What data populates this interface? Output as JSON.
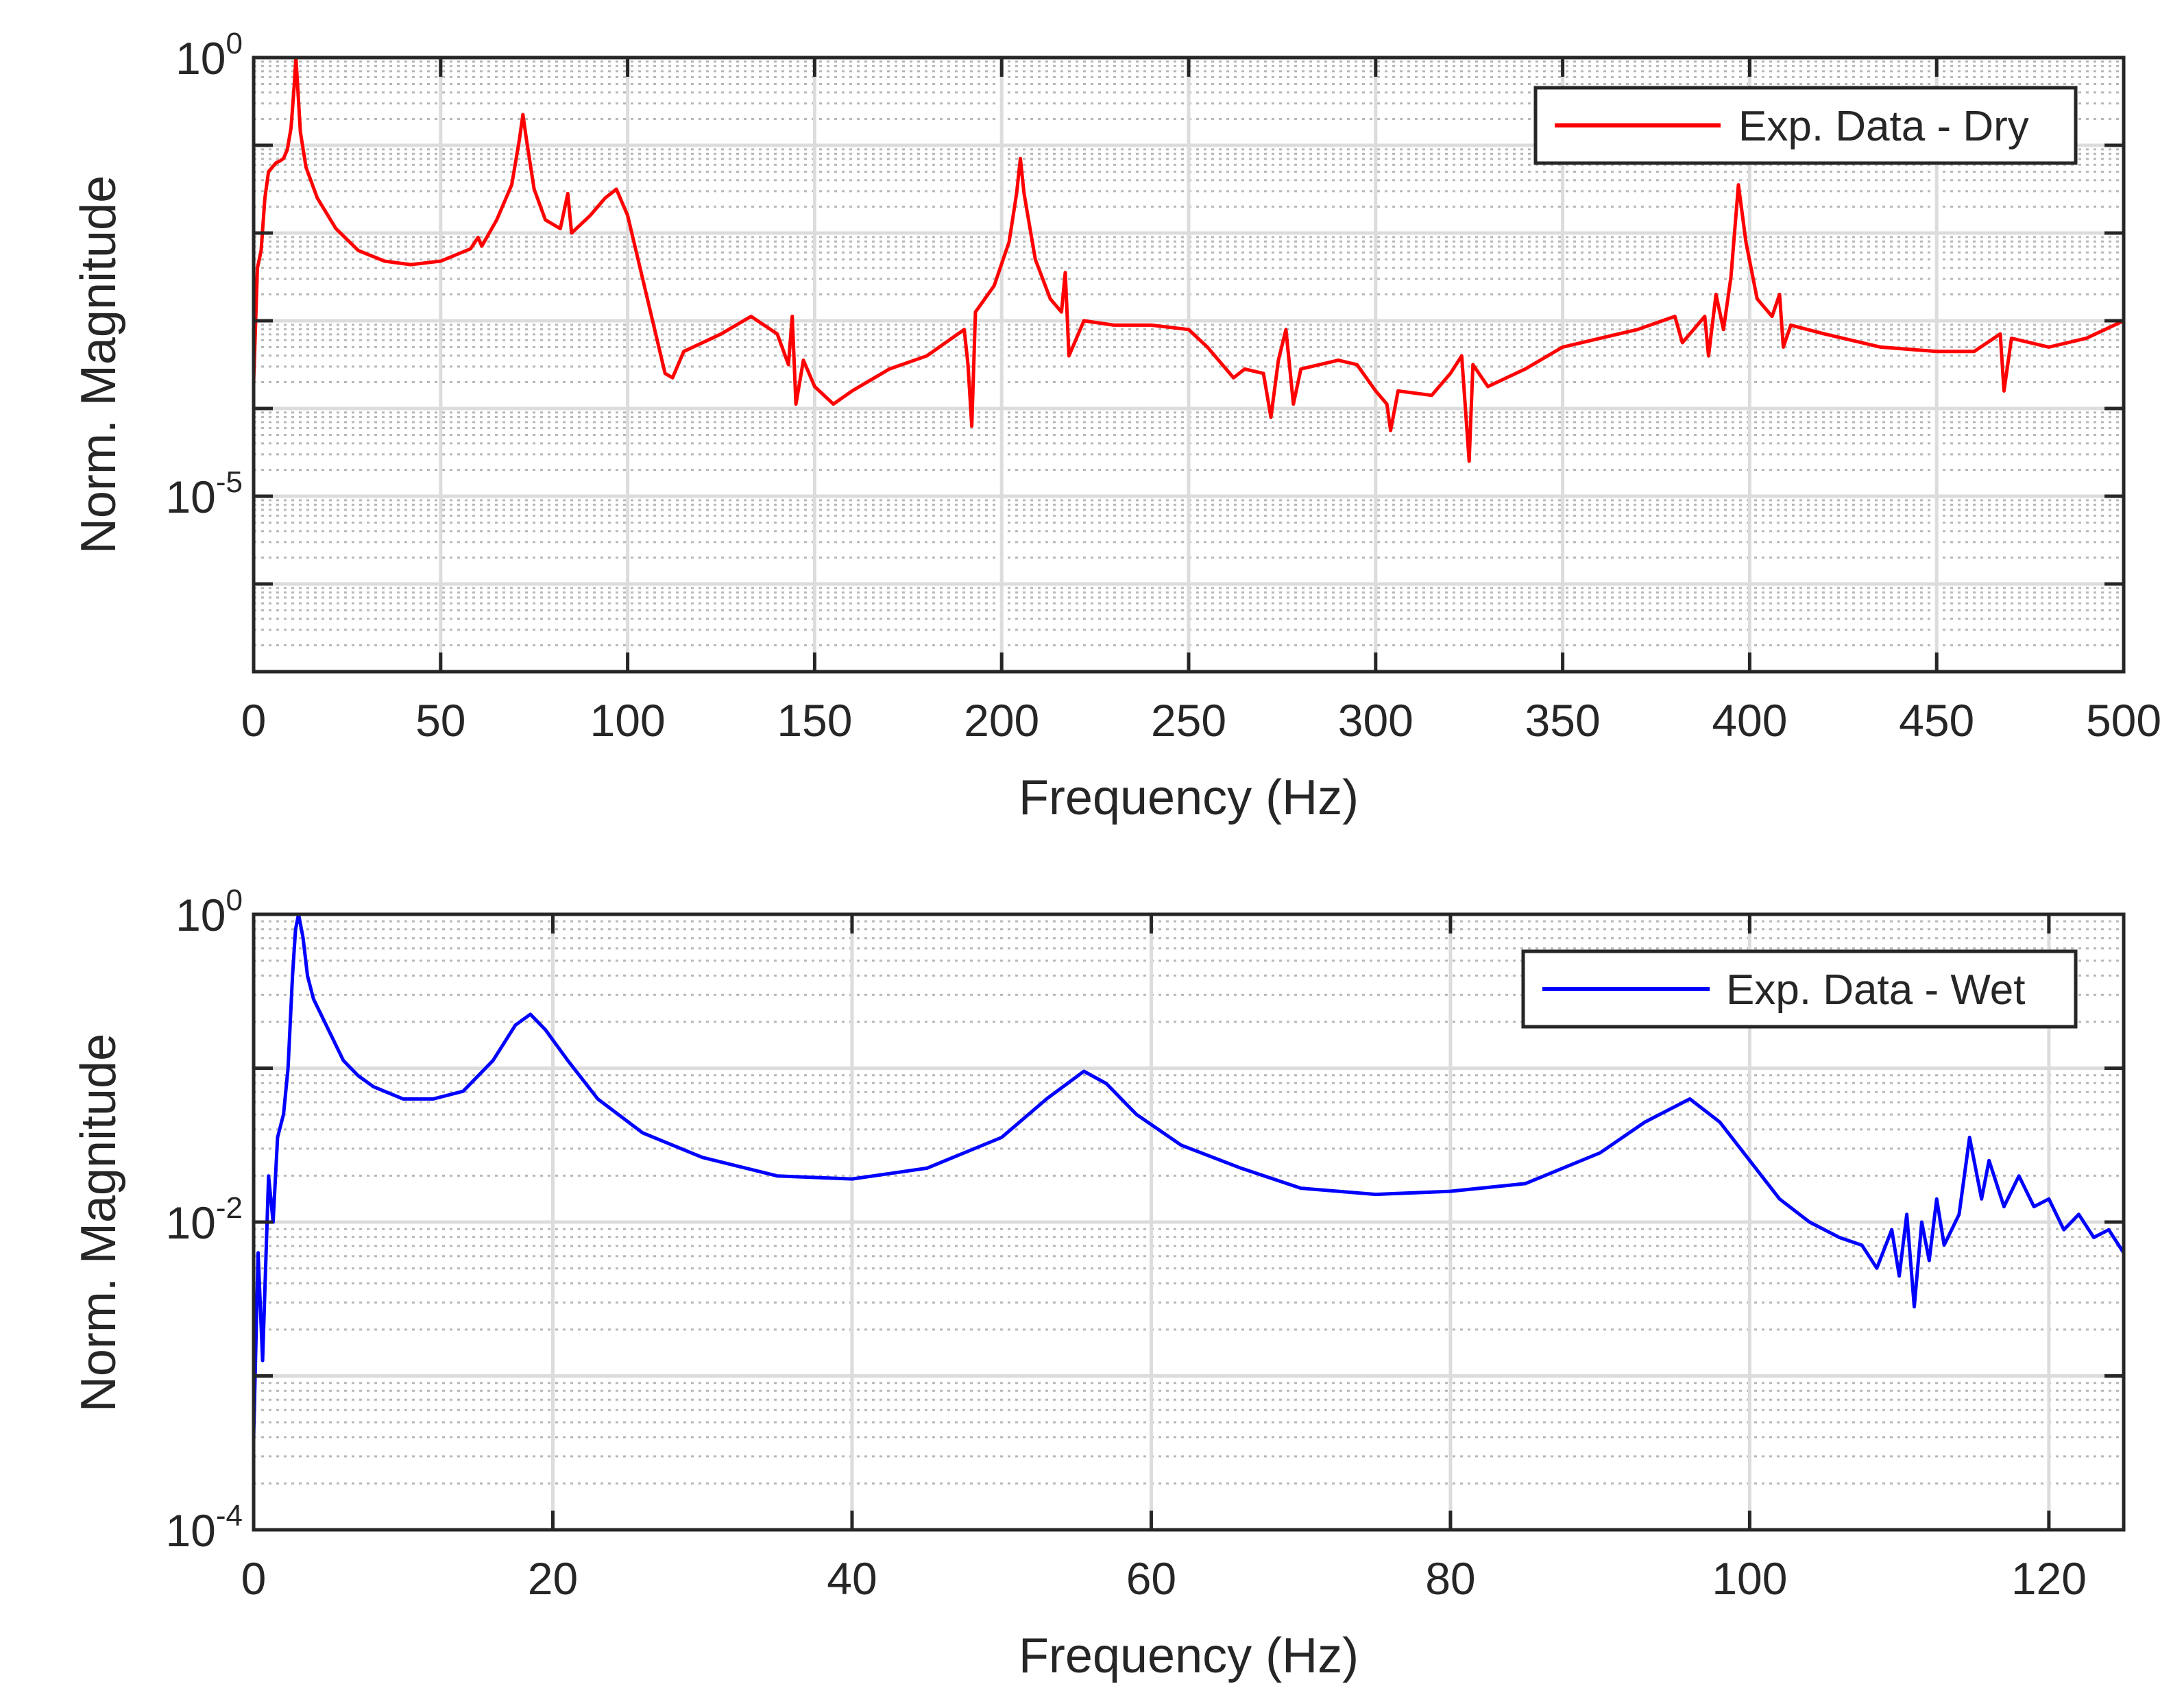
{
  "chart_data": [
    {
      "type": "line",
      "id": "dry",
      "xlabel": "Frequency (Hz)",
      "ylabel": "Norm. Magnitude",
      "x_scale": "linear",
      "y_scale": "log",
      "xlim": [
        0,
        500
      ],
      "ylim_log10": [
        -7,
        0
      ],
      "xticks": [
        0,
        50,
        100,
        150,
        200,
        250,
        300,
        350,
        400,
        450,
        500
      ],
      "xtick_labels": [
        "0",
        "50",
        "100",
        "150",
        "200",
        "250",
        "300",
        "350",
        "400",
        "450",
        "500"
      ],
      "yticks": [
        {
          "exp": 0,
          "base": "10",
          "sup": "0"
        },
        {
          "exp": -5,
          "base": "10",
          "sup": "-5"
        }
      ],
      "grid": "major + minor (dotted)",
      "legend": "top-right",
      "series": [
        {
          "name": "Exp. Data - Dry",
          "color": "#ff0000",
          "points_log10": [
            [
              0.0,
              -3.7
            ],
            [
              1.0,
              -2.4
            ],
            [
              2.0,
              -2.2
            ],
            [
              3.0,
              -1.6
            ],
            [
              4.0,
              -1.3
            ],
            [
              5.0,
              -1.25
            ],
            [
              6.0,
              -1.2
            ],
            [
              7.0,
              -1.18
            ],
            [
              8.0,
              -1.15
            ],
            [
              9.0,
              -1.05
            ],
            [
              10.0,
              -0.8
            ],
            [
              10.8,
              -0.35
            ],
            [
              11.3,
              0.0
            ],
            [
              11.8,
              -0.35
            ],
            [
              12.5,
              -0.85
            ],
            [
              14.0,
              -1.25
            ],
            [
              17.0,
              -1.6
            ],
            [
              22.0,
              -1.95
            ],
            [
              28.0,
              -2.2
            ],
            [
              35.0,
              -2.32
            ],
            [
              42.0,
              -2.36
            ],
            [
              50.0,
              -2.32
            ],
            [
              58.0,
              -2.18
            ],
            [
              60.0,
              -2.05
            ],
            [
              61.0,
              -2.15
            ],
            [
              65.0,
              -1.85
            ],
            [
              69.0,
              -1.45
            ],
            [
              71.0,
              -0.95
            ],
            [
              72.0,
              -0.65
            ],
            [
              73.0,
              -0.95
            ],
            [
              75.0,
              -1.5
            ],
            [
              78.0,
              -1.85
            ],
            [
              82.0,
              -1.95
            ],
            [
              84.0,
              -1.55
            ],
            [
              85.0,
              -2.0
            ],
            [
              90.0,
              -1.8
            ],
            [
              94.0,
              -1.6
            ],
            [
              97.0,
              -1.5
            ],
            [
              100.0,
              -1.8
            ],
            [
              105.0,
              -2.7
            ],
            [
              110.0,
              -3.6
            ],
            [
              112.0,
              -3.65
            ],
            [
              115.0,
              -3.35
            ],
            [
              125.0,
              -3.15
            ],
            [
              133.0,
              -2.95
            ],
            [
              140.0,
              -3.15
            ],
            [
              143.0,
              -3.5
            ],
            [
              144.0,
              -2.95
            ],
            [
              145.0,
              -3.95
            ],
            [
              147.0,
              -3.45
            ],
            [
              150.0,
              -3.75
            ],
            [
              155.0,
              -3.95
            ],
            [
              160.0,
              -3.8
            ],
            [
              170.0,
              -3.55
            ],
            [
              180.0,
              -3.4
            ],
            [
              190.0,
              -3.1
            ],
            [
              191.0,
              -3.5
            ],
            [
              192.0,
              -4.2
            ],
            [
              193.0,
              -2.9
            ],
            [
              198.0,
              -2.6
            ],
            [
              202.0,
              -2.1
            ],
            [
              204.0,
              -1.55
            ],
            [
              205.0,
              -1.15
            ],
            [
              206.0,
              -1.55
            ],
            [
              209.0,
              -2.3
            ],
            [
              213.0,
              -2.75
            ],
            [
              216.0,
              -2.9
            ],
            [
              217.0,
              -2.45
            ],
            [
              218.0,
              -3.4
            ],
            [
              222.0,
              -3.0
            ],
            [
              230.0,
              -3.05
            ],
            [
              240.0,
              -3.05
            ],
            [
              250.0,
              -3.1
            ],
            [
              255.0,
              -3.3
            ],
            [
              262.0,
              -3.65
            ],
            [
              265.0,
              -3.55
            ],
            [
              270.0,
              -3.6
            ],
            [
              272.0,
              -4.1
            ],
            [
              274.0,
              -3.45
            ],
            [
              276.0,
              -3.1
            ],
            [
              278.0,
              -3.95
            ],
            [
              280.0,
              -3.55
            ],
            [
              290.0,
              -3.45
            ],
            [
              295.0,
              -3.5
            ],
            [
              300.0,
              -3.8
            ],
            [
              303.0,
              -3.95
            ],
            [
              304.0,
              -4.25
            ],
            [
              306.0,
              -3.8
            ],
            [
              315.0,
              -3.85
            ],
            [
              320.0,
              -3.6
            ],
            [
              323.0,
              -3.4
            ],
            [
              325.0,
              -4.6
            ],
            [
              326.0,
              -3.5
            ],
            [
              330.0,
              -3.75
            ],
            [
              340.0,
              -3.55
            ],
            [
              350.0,
              -3.3
            ],
            [
              360.0,
              -3.2
            ],
            [
              370.0,
              -3.1
            ],
            [
              380.0,
              -2.95
            ],
            [
              382.0,
              -3.25
            ],
            [
              385.0,
              -3.1
            ],
            [
              388.0,
              -2.95
            ],
            [
              389.0,
              -3.4
            ],
            [
              391.0,
              -2.7
            ],
            [
              393.0,
              -3.1
            ],
            [
              395.0,
              -2.5
            ],
            [
              397.0,
              -1.45
            ],
            [
              399.0,
              -2.1
            ],
            [
              402.0,
              -2.75
            ],
            [
              406.0,
              -2.95
            ],
            [
              408.0,
              -2.7
            ],
            [
              409.0,
              -3.3
            ],
            [
              411.0,
              -3.05
            ],
            [
              420.0,
              -3.15
            ],
            [
              435.0,
              -3.3
            ],
            [
              450.0,
              -3.35
            ],
            [
              460.0,
              -3.35
            ],
            [
              467.0,
              -3.15
            ],
            [
              468.0,
              -3.8
            ],
            [
              470.0,
              -3.2
            ],
            [
              480.0,
              -3.3
            ],
            [
              490.0,
              -3.2
            ],
            [
              500.0,
              -3.0
            ]
          ]
        }
      ]
    },
    {
      "type": "line",
      "id": "wet",
      "xlabel": "Frequency (Hz)",
      "ylabel": "Norm. Magnitude",
      "x_scale": "linear",
      "y_scale": "log",
      "xlim": [
        0,
        125
      ],
      "ylim_log10": [
        -4,
        0
      ],
      "xticks": [
        0,
        20,
        40,
        60,
        80,
        100,
        120
      ],
      "xtick_labels": [
        "0",
        "20",
        "40",
        "60",
        "80",
        "100",
        "120"
      ],
      "yticks": [
        {
          "exp": 0,
          "base": "10",
          "sup": "0"
        },
        {
          "exp": -2,
          "base": "10",
          "sup": "-2"
        },
        {
          "exp": -4,
          "base": "10",
          "sup": "-4"
        }
      ],
      "grid": "major + minor (dotted)",
      "legend": "top-right",
      "series": [
        {
          "name": "Exp. Data - Wet",
          "color": "#0000ff",
          "points_log10": [
            [
              0.0,
              -3.4
            ],
            [
              0.3,
              -2.2
            ],
            [
              0.6,
              -2.9
            ],
            [
              1.0,
              -1.7
            ],
            [
              1.3,
              -2.0
            ],
            [
              1.6,
              -1.45
            ],
            [
              2.0,
              -1.3
            ],
            [
              2.3,
              -1.0
            ],
            [
              2.6,
              -0.4
            ],
            [
              2.8,
              -0.1
            ],
            [
              3.0,
              0.0
            ],
            [
              3.3,
              -0.15
            ],
            [
              3.6,
              -0.4
            ],
            [
              4.0,
              -0.55
            ],
            [
              5.0,
              -0.75
            ],
            [
              6.0,
              -0.95
            ],
            [
              7.0,
              -1.05
            ],
            [
              8.0,
              -1.12
            ],
            [
              10.0,
              -1.2
            ],
            [
              12.0,
              -1.2
            ],
            [
              14.0,
              -1.15
            ],
            [
              16.0,
              -0.95
            ],
            [
              17.5,
              -0.72
            ],
            [
              18.5,
              -0.65
            ],
            [
              19.5,
              -0.75
            ],
            [
              21.0,
              -0.95
            ],
            [
              23.0,
              -1.2
            ],
            [
              26.0,
              -1.42
            ],
            [
              30.0,
              -1.58
            ],
            [
              35.0,
              -1.7
            ],
            [
              40.0,
              -1.72
            ],
            [
              45.0,
              -1.65
            ],
            [
              50.0,
              -1.45
            ],
            [
              53.0,
              -1.2
            ],
            [
              55.5,
              -1.02
            ],
            [
              57.0,
              -1.1
            ],
            [
              59.0,
              -1.3
            ],
            [
              62.0,
              -1.5
            ],
            [
              66.0,
              -1.65
            ],
            [
              70.0,
              -1.78
            ],
            [
              75.0,
              -1.82
            ],
            [
              80.0,
              -1.8
            ],
            [
              85.0,
              -1.75
            ],
            [
              90.0,
              -1.55
            ],
            [
              93.0,
              -1.35
            ],
            [
              96.0,
              -1.2
            ],
            [
              98.0,
              -1.35
            ],
            [
              100.0,
              -1.6
            ],
            [
              102.0,
              -1.85
            ],
            [
              104.0,
              -2.0
            ],
            [
              106.0,
              -2.1
            ],
            [
              107.5,
              -2.15
            ],
            [
              108.5,
              -2.3
            ],
            [
              109.5,
              -2.05
            ],
            [
              110.0,
              -2.35
            ],
            [
              110.5,
              -1.95
            ],
            [
              111.0,
              -2.55
            ],
            [
              111.5,
              -2.0
            ],
            [
              112.0,
              -2.25
            ],
            [
              112.5,
              -1.85
            ],
            [
              113.0,
              -2.15
            ],
            [
              114.0,
              -1.95
            ],
            [
              114.7,
              -1.45
            ],
            [
              115.5,
              -1.85
            ],
            [
              116.0,
              -1.6
            ],
            [
              117.0,
              -1.9
            ],
            [
              118.0,
              -1.7
            ],
            [
              119.0,
              -1.9
            ],
            [
              120.0,
              -1.85
            ],
            [
              121.0,
              -2.05
            ],
            [
              122.0,
              -1.95
            ],
            [
              123.0,
              -2.1
            ],
            [
              124.0,
              -2.05
            ],
            [
              125.0,
              -2.2
            ]
          ]
        }
      ]
    }
  ]
}
